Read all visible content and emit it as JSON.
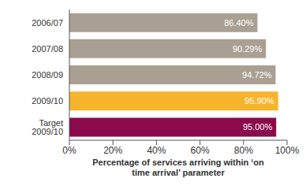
{
  "chart_data": {
    "type": "bar",
    "orientation": "horizontal",
    "categories": [
      "2006/07",
      "2007/08",
      "2008/09",
      "2009/10",
      "Target 2009/10"
    ],
    "values": [
      86.4,
      90.29,
      94.72,
      95.9,
      95.0
    ],
    "value_labels": [
      "86.40%",
      "90.29%",
      "94.72%",
      "95.90%",
      "95.00%"
    ],
    "colors": [
      "#a99f92",
      "#a99f92",
      "#a99f92",
      "#f6b42c",
      "#8b0a4c"
    ],
    "data_labels": true,
    "xlim": [
      0,
      100
    ],
    "xticks": [
      {
        "value": 0,
        "label": "0%"
      },
      {
        "value": 20,
        "label": "20%"
      },
      {
        "value": 40,
        "label": "40%"
      },
      {
        "value": 60,
        "label": "60%"
      },
      {
        "value": 80,
        "label": "80%"
      },
      {
        "value": 100,
        "label": "100%"
      }
    ],
    "x_label": "Percentage of services arriving within ‘on time arrival’ parameter",
    "grid": false
  }
}
